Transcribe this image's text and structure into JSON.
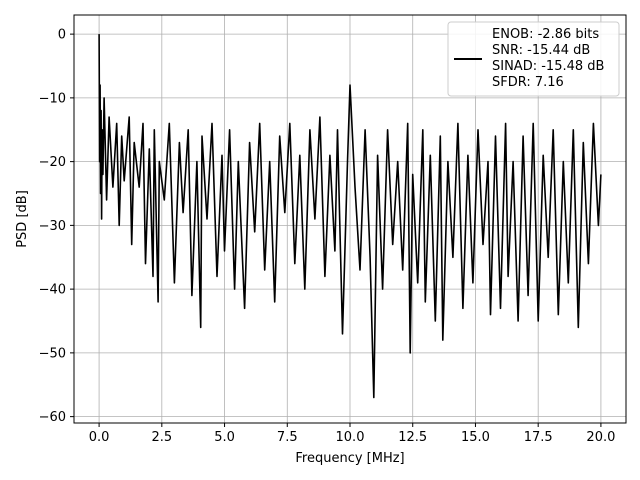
{
  "chart_data": {
    "type": "line",
    "title": "",
    "xlabel": "Frequency [MHz]",
    "ylabel": "PSD [dB]",
    "xlim": [
      -1.0,
      21.0
    ],
    "ylim": [
      -61.0,
      3.0
    ],
    "x_ticks": [
      0.0,
      2.5,
      5.0,
      7.5,
      10.0,
      12.5,
      15.0,
      17.5,
      20.0
    ],
    "x_tick_labels": [
      "0.0",
      "2.5",
      "5.0",
      "7.5",
      "10.0",
      "12.5",
      "15.0",
      "17.5",
      "20.0"
    ],
    "y_ticks": [
      0,
      -10,
      -20,
      -30,
      -40,
      -50,
      -60
    ],
    "y_tick_labels": [
      "0",
      "−10",
      "−20",
      "−30",
      "−40",
      "−50",
      "−60"
    ],
    "grid": true,
    "legend_placement": "top-right",
    "legend_entries": [
      "ENOB: -2.86 bits",
      "SNR: -15.44 dB",
      "SINAD: -15.48 dB",
      "SFDR: 7.16"
    ],
    "line_color": "#000000",
    "series": [
      {
        "x": [
          0.0,
          0.02,
          0.04,
          0.06,
          0.08,
          0.1,
          0.12,
          0.15,
          0.2,
          0.3,
          0.4,
          0.55,
          0.7,
          0.8,
          0.9,
          1.0,
          1.2,
          1.3,
          1.4,
          1.6,
          1.75,
          1.85,
          2.0,
          2.15,
          2.2,
          2.35,
          2.4,
          2.6,
          2.8,
          3.0,
          3.2,
          3.35,
          3.55,
          3.7,
          3.9,
          4.05,
          4.1,
          4.3,
          4.5,
          4.7,
          4.9,
          5.0,
          5.2,
          5.4,
          5.55,
          5.8,
          6.0,
          6.2,
          6.4,
          6.6,
          6.8,
          7.0,
          7.2,
          7.4,
          7.6,
          7.8,
          8.0,
          8.2,
          8.4,
          8.6,
          8.8,
          9.0,
          9.2,
          9.4,
          9.5,
          9.7,
          9.9,
          10.0,
          10.2,
          10.4,
          10.6,
          10.8,
          10.95,
          11.1,
          11.3,
          11.5,
          11.7,
          11.9,
          12.1,
          12.3,
          12.4,
          12.5,
          12.7,
          12.9,
          13.0,
          13.2,
          13.4,
          13.6,
          13.7,
          13.9,
          14.1,
          14.3,
          14.5,
          14.7,
          14.9,
          15.1,
          15.3,
          15.5,
          15.6,
          15.8,
          16.0,
          16.2,
          16.3,
          16.5,
          16.7,
          16.9,
          17.1,
          17.3,
          17.5,
          17.7,
          17.9,
          18.1,
          18.3,
          18.5,
          18.7,
          18.9,
          19.1,
          19.3,
          19.5,
          19.7,
          19.9,
          20.0
        ],
        "y": [
          0.0,
          -20.0,
          -8.0,
          -25.0,
          -12.0,
          -29.0,
          -15.0,
          -22.0,
          -10.0,
          -26.0,
          -13.0,
          -24.0,
          -14.0,
          -30.0,
          -16.0,
          -23.0,
          -13.0,
          -33.0,
          -17.0,
          -24.0,
          -14.0,
          -36.0,
          -18.0,
          -38.0,
          -15.0,
          -42.0,
          -20.0,
          -26.0,
          -14.0,
          -39.0,
          -17.0,
          -28.0,
          -15.0,
          -41.0,
          -20.0,
          -46.0,
          -16.0,
          -29.0,
          -14.0,
          -38.0,
          -19.0,
          -34.0,
          -15.0,
          -40.0,
          -20.0,
          -43.0,
          -17.0,
          -31.0,
          -14.0,
          -37.0,
          -20.0,
          -42.0,
          -16.0,
          -28.0,
          -14.0,
          -36.0,
          -19.0,
          -40.0,
          -15.0,
          -29.0,
          -13.0,
          -38.0,
          -19.0,
          -34.0,
          -15.0,
          -47.0,
          -20.0,
          -8.0,
          -24.0,
          -37.0,
          -15.0,
          -35.0,
          -57.0,
          -19.0,
          -40.0,
          -15.0,
          -33.0,
          -20.0,
          -37.0,
          -14.0,
          -50.0,
          -22.0,
          -39.0,
          -15.0,
          -42.0,
          -19.0,
          -45.0,
          -16.0,
          -48.0,
          -20.0,
          -35.0,
          -14.0,
          -43.0,
          -19.0,
          -39.0,
          -15.0,
          -33.0,
          -20.0,
          -44.0,
          -16.0,
          -43.0,
          -14.0,
          -38.0,
          -20.0,
          -45.0,
          -16.0,
          -41.0,
          -14.0,
          -45.0,
          -19.0,
          -35.0,
          -15.0,
          -44.0,
          -20.0,
          -39.0,
          -15.0,
          -46.0,
          -17.0,
          -36.0,
          -14.0,
          -30.0,
          -22.0
        ]
      }
    ]
  }
}
